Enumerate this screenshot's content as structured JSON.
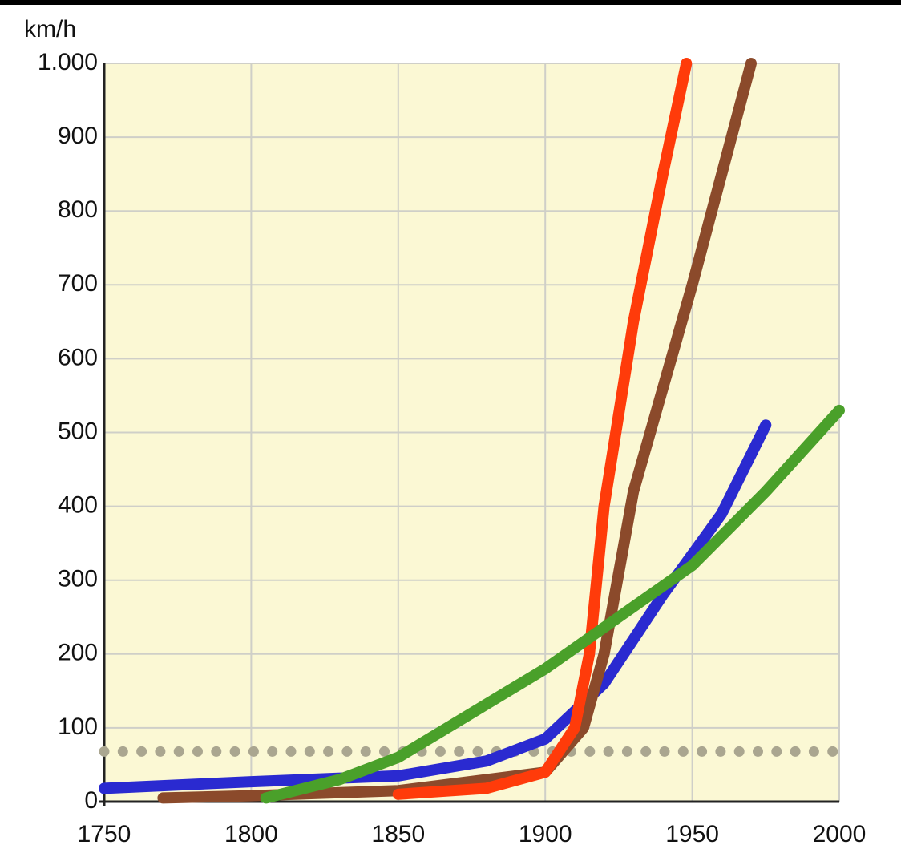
{
  "chart_data": {
    "type": "line",
    "y_label": "km/h",
    "xlim": [
      1750,
      2000
    ],
    "xticks": [
      1750,
      1800,
      1850,
      1900,
      1950,
      2000
    ],
    "ylim": [
      0,
      1000
    ],
    "yticks": [
      0,
      100,
      200,
      300,
      400,
      500,
      600,
      700,
      800,
      900,
      {
        "value": 1000,
        "label": "1.000"
      }
    ],
    "grid": true,
    "series": [
      {
        "color": "#aaa690",
        "style": "dotted",
        "x": [
          1750,
          2000
        ],
        "values": [
          68,
          68
        ]
      },
      {
        "color": "#2a2ad0",
        "style": "solid",
        "x": [
          1750,
          1800,
          1850,
          1880,
          1900,
          1920,
          1940,
          1960,
          1975
        ],
        "values": [
          18,
          27,
          35,
          55,
          85,
          160,
          280,
          390,
          510
        ]
      },
      {
        "color": "#8b4a2b",
        "style": "solid",
        "x": [
          1770,
          1800,
          1850,
          1900,
          1913,
          1920,
          1930,
          1950,
          1960,
          1970
        ],
        "values": [
          5,
          8,
          15,
          40,
          100,
          200,
          420,
          700,
          850,
          1000
        ]
      },
      {
        "color": "#ff3b0a",
        "style": "solid",
        "x": [
          1850,
          1880,
          1900,
          1910,
          1915,
          1920,
          1930,
          1940,
          1948
        ],
        "values": [
          10,
          18,
          40,
          100,
          200,
          400,
          650,
          850,
          1000
        ]
      },
      {
        "color": "#4aa02a",
        "style": "solid",
        "x": [
          1805,
          1830,
          1850,
          1875,
          1900,
          1925,
          1950,
          1975,
          2000
        ],
        "values": [
          5,
          30,
          60,
          120,
          180,
          250,
          320,
          420,
          530
        ]
      }
    ]
  }
}
